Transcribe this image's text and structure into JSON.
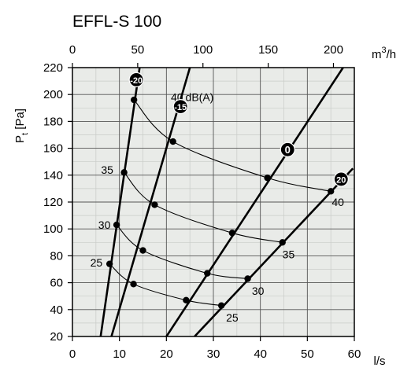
{
  "chart_data": {
    "type": "line",
    "title": "EFFL-S 100",
    "ylabel_main": "P",
    "ylabel_sub": "t",
    "ylabel_unit": "[Pa]",
    "xlabel": "l/s",
    "x2label_base": "m",
    "x2label_exp": "3",
    "x2label_tail": "/h",
    "xlim": [
      0,
      60
    ],
    "ylim": [
      20,
      220
    ],
    "x_ticks": [
      0,
      10,
      20,
      30,
      40,
      50,
      60
    ],
    "y_ticks": [
      20,
      40,
      60,
      80,
      100,
      120,
      140,
      160,
      180,
      200,
      220
    ],
    "x2_ticks": [
      0,
      50,
      100,
      150,
      200
    ],
    "grid": true,
    "fan_curves": [
      {
        "name": "-20",
        "points": [
          [
            6,
            20
          ],
          [
            14.3,
            220
          ]
        ],
        "badge": [
          13.6,
          211
        ]
      },
      {
        "name": "-15",
        "points": [
          [
            8.3,
            20
          ],
          [
            25,
            220
          ]
        ],
        "badge": [
          23,
          191
        ]
      },
      {
        "name": "0",
        "points": [
          [
            20,
            20
          ],
          [
            57.6,
            220
          ]
        ],
        "badge": [
          45.8,
          159
        ]
      },
      {
        "name": "20",
        "points": [
          [
            26,
            20
          ],
          [
            59.7,
            145
          ]
        ],
        "badge": [
          57.2,
          137
        ]
      }
    ],
    "sound_curves": [
      {
        "name": "40 dB(A)",
        "label_parts": [
          "40",
          "dB(A)"
        ],
        "label_pos": [
          25.5,
          198
        ],
        "points": [
          [
            13.1,
            196
          ],
          [
            21.4,
            165
          ],
          [
            41.5,
            138
          ],
          [
            55,
            128
          ]
        ],
        "end_label": "40",
        "end_pos": [
          56.5,
          120
        ]
      },
      {
        "name": "35",
        "label_pos": [
          7.4,
          144
        ],
        "points": [
          [
            11,
            142
          ],
          [
            17.5,
            118
          ],
          [
            34,
            97
          ],
          [
            44.7,
            90
          ]
        ],
        "end_label": "35",
        "end_pos": [
          46,
          81
        ]
      },
      {
        "name": "30",
        "label_pos": [
          6.8,
          103
        ],
        "points": [
          [
            9.4,
            103
          ],
          [
            15,
            84
          ],
          [
            28.7,
            67
          ],
          [
            37.3,
            63
          ]
        ],
        "end_label": "30",
        "end_pos": [
          39.5,
          54
        ]
      },
      {
        "name": "25",
        "label_pos": [
          5.1,
          75
        ],
        "points": [
          [
            7.9,
            74
          ],
          [
            13,
            59
          ],
          [
            24.2,
            47
          ],
          [
            31.7,
            43
          ]
        ],
        "end_label": "25",
        "end_pos": [
          34,
          34
        ]
      }
    ]
  }
}
